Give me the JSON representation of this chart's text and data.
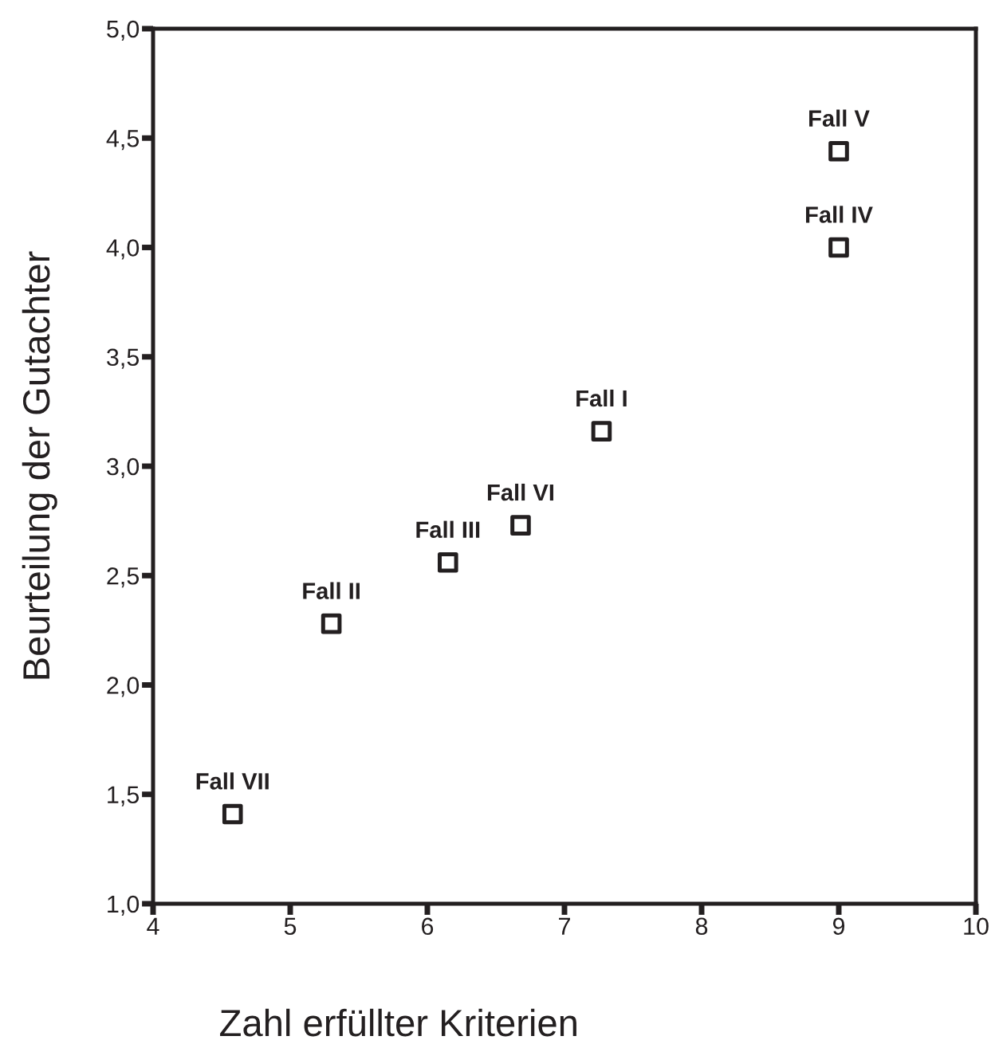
{
  "chart_data": {
    "type": "scatter",
    "xlabel": "Zahl erfüllter Kriterien",
    "ylabel": "Beurteilung der Gutachter",
    "x": [
      7.27,
      5.3,
      6.15,
      9.0,
      9.0,
      6.68,
      4.58
    ],
    "values": [
      3.16,
      2.28,
      2.56,
      4.0,
      4.44,
      2.73,
      1.41
    ],
    "color": "#231f20",
    "marker": "square",
    "annotations": [
      {
        "text": "Fall I",
        "x": 7.27,
        "y": 3.16
      },
      {
        "text": "Fall II",
        "x": 5.3,
        "y": 2.28
      },
      {
        "text": "Fall III",
        "x": 6.15,
        "y": 2.56
      },
      {
        "text": "Fall IV",
        "x": 9.0,
        "y": 4.0
      },
      {
        "text": "Fall V",
        "x": 9.0,
        "y": 4.44
      },
      {
        "text": "Fall VI",
        "x": 6.68,
        "y": 2.73
      },
      {
        "text": "Fall VII",
        "x": 4.58,
        "y": 1.41
      }
    ],
    "xlim": [
      4,
      10
    ],
    "ylim": [
      1.0,
      5.0
    ],
    "xticks": [
      4,
      5,
      6,
      7,
      8,
      9,
      10
    ],
    "yticks": [
      {
        "value": 1.0,
        "label": "1,0"
      },
      {
        "value": 1.5,
        "label": "1,5"
      },
      {
        "value": 2.0,
        "label": "2,0"
      },
      {
        "value": 2.5,
        "label": "2,5"
      },
      {
        "value": 3.0,
        "label": "3,0"
      },
      {
        "value": 3.5,
        "label": "3,5"
      },
      {
        "value": 4.0,
        "label": "4,0"
      },
      {
        "value": 4.5,
        "label": "4,5"
      },
      {
        "value": 5.0,
        "label": "5,0"
      }
    ],
    "grid": false
  }
}
